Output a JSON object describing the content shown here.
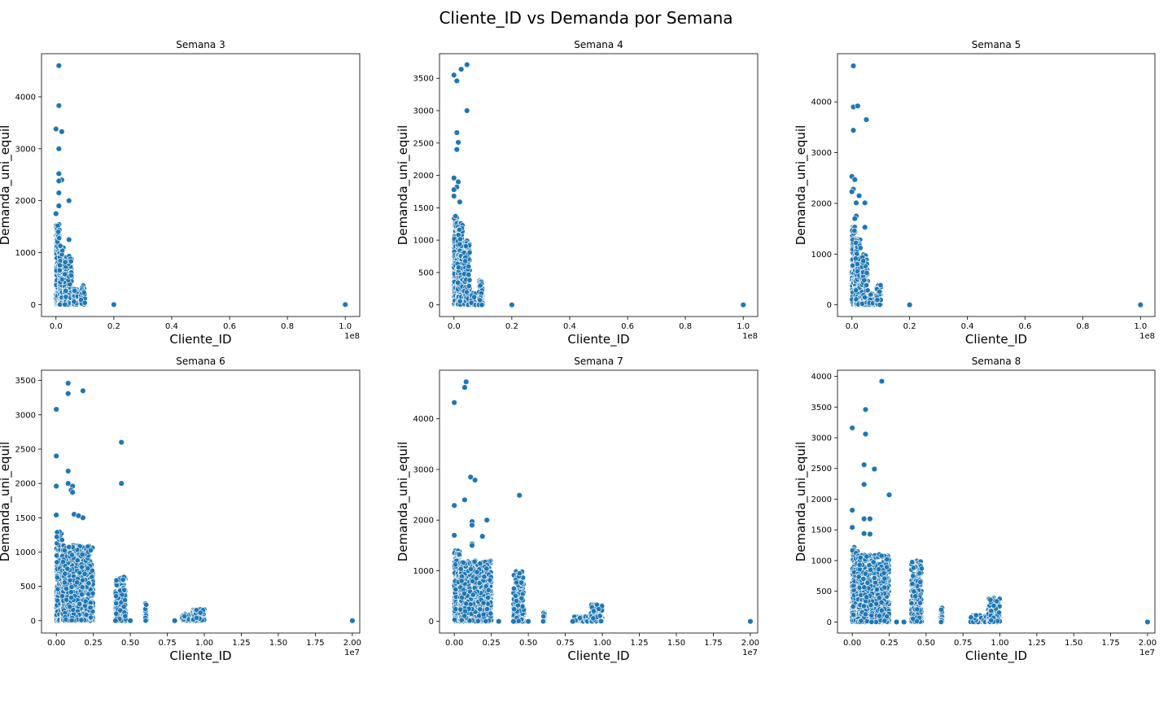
{
  "figure": {
    "title": "Cliente_ID vs Demanda por Semana",
    "marker_color": "#1f77b4",
    "marker_edge_color": "#ffffff"
  },
  "chart_data": [
    {
      "type": "scatter",
      "title": "Semana 3",
      "xlabel": "Cliente_ID",
      "ylabel": "Demanda_uni_equil",
      "x_offset_label": "1e8",
      "xlim": [
        -0.05,
        1.05
      ],
      "ylim": [
        -230,
        4830
      ],
      "xticks": [
        0.0,
        0.2,
        0.4,
        0.6,
        0.8,
        1.0
      ],
      "xticklabels": [
        "0.0",
        "0.2",
        "0.4",
        "0.6",
        "0.8",
        "1.0"
      ],
      "yticks": [
        0,
        1000,
        2000,
        3000,
        4000
      ],
      "yticklabels": [
        "0",
        "1000",
        "2000",
        "3000",
        "4000"
      ],
      "outliers": [
        [
          0.01,
          4600
        ],
        [
          0.01,
          3830
        ],
        [
          0.0,
          3380
        ],
        [
          0.02,
          3330
        ],
        [
          0.01,
          3000
        ],
        [
          0.01,
          2520
        ],
        [
          0.02,
          2400
        ],
        [
          0.01,
          2380
        ],
        [
          0.01,
          2150
        ],
        [
          0.045,
          2000
        ],
        [
          0.01,
          1900
        ],
        [
          0.0,
          1750
        ],
        [
          0.045,
          1250
        ],
        [
          0.2,
          0
        ],
        [
          1.0,
          0
        ]
      ],
      "clusters": [
        [
          0.0,
          0.012,
          1550,
          320
        ],
        [
          0.012,
          0.026,
          1200,
          160
        ],
        [
          0.03,
          0.055,
          1000,
          140
        ],
        [
          0.06,
          0.075,
          300,
          40
        ],
        [
          0.085,
          0.1,
          400,
          60
        ]
      ]
    },
    {
      "type": "scatter",
      "title": "Semana 4",
      "xlabel": "Cliente_ID",
      "ylabel": "Demanda_uni_equil",
      "x_offset_label": "1e8",
      "xlim": [
        -0.05,
        1.05
      ],
      "ylim": [
        -180,
        3880
      ],
      "xticks": [
        0.0,
        0.2,
        0.4,
        0.6,
        0.8,
        1.0
      ],
      "xticklabels": [
        "0.0",
        "0.2",
        "0.4",
        "0.6",
        "0.8",
        "1.0"
      ],
      "yticks": [
        0,
        500,
        1000,
        1500,
        2000,
        2500,
        3000,
        3500
      ],
      "yticklabels": [
        "0",
        "500",
        "1000",
        "1500",
        "2000",
        "2500",
        "3000",
        "3500"
      ],
      "outliers": [
        [
          0.045,
          3710
        ],
        [
          0.025,
          3640
        ],
        [
          0.0,
          3550
        ],
        [
          0.01,
          3460
        ],
        [
          0.045,
          3000
        ],
        [
          0.01,
          2660
        ],
        [
          0.015,
          2510
        ],
        [
          0.01,
          2400
        ],
        [
          0.0,
          1960
        ],
        [
          0.015,
          1900
        ],
        [
          0.01,
          1820
        ],
        [
          0.0,
          1780
        ],
        [
          0.0,
          1680
        ],
        [
          0.02,
          1590
        ],
        [
          0.2,
          0
        ],
        [
          1.0,
          0
        ]
      ],
      "clusters": [
        [
          0.0,
          0.012,
          1380,
          300
        ],
        [
          0.012,
          0.03,
          1260,
          170
        ],
        [
          0.035,
          0.055,
          1000,
          140
        ],
        [
          0.06,
          0.075,
          200,
          40
        ],
        [
          0.085,
          0.1,
          380,
          60
        ]
      ]
    },
    {
      "type": "scatter",
      "title": "Semana 5",
      "xlabel": "Cliente_ID",
      "ylabel": "Demanda_uni_equil",
      "x_offset_label": "1e8",
      "xlim": [
        -0.05,
        1.05
      ],
      "ylim": [
        -230,
        4950
      ],
      "xticks": [
        0.0,
        0.2,
        0.4,
        0.6,
        0.8,
        1.0
      ],
      "xticklabels": [
        "0.0",
        "0.2",
        "0.4",
        "0.6",
        "0.8",
        "1.0"
      ],
      "yticks": [
        0,
        1000,
        2000,
        3000,
        4000
      ],
      "yticklabels": [
        "0",
        "1000",
        "2000",
        "3000",
        "4000"
      ],
      "outliers": [
        [
          0.005,
          4710
        ],
        [
          0.005,
          3900
        ],
        [
          0.02,
          3920
        ],
        [
          0.05,
          3650
        ],
        [
          0.005,
          3440
        ],
        [
          0.0,
          2530
        ],
        [
          0.01,
          2470
        ],
        [
          0.005,
          2280
        ],
        [
          0.0,
          2230
        ],
        [
          0.025,
          2150
        ],
        [
          0.015,
          2010
        ],
        [
          0.045,
          2010
        ],
        [
          0.015,
          1750
        ],
        [
          0.01,
          1700
        ],
        [
          0.045,
          1530
        ],
        [
          0.2,
          0
        ],
        [
          1.0,
          0
        ]
      ],
      "clusters": [
        [
          0.0,
          0.012,
          1550,
          300
        ],
        [
          0.012,
          0.03,
          1300,
          170
        ],
        [
          0.035,
          0.055,
          1000,
          140
        ],
        [
          0.06,
          0.075,
          220,
          40
        ],
        [
          0.085,
          0.1,
          400,
          60
        ]
      ]
    },
    {
      "type": "scatter",
      "title": "Semana 6",
      "xlabel": "Cliente_ID",
      "ylabel": "Demanda_uni_equil",
      "x_offset_label": "1e7",
      "xlim": [
        -0.1,
        2.05
      ],
      "ylim": [
        -180,
        3650
      ],
      "xticks": [
        0.0,
        0.25,
        0.5,
        0.75,
        1.0,
        1.25,
        1.5,
        1.75,
        2.0
      ],
      "xticklabels": [
        "0.00",
        "0.25",
        "0.50",
        "0.75",
        "1.00",
        "1.25",
        "1.50",
        "1.75",
        "2.00"
      ],
      "yticks": [
        0,
        500,
        1000,
        1500,
        2000,
        2500,
        3000,
        3500
      ],
      "yticklabels": [
        "0",
        "500",
        "1000",
        "1500",
        "2000",
        "2500",
        "3000",
        "3500"
      ],
      "outliers": [
        [
          0.08,
          3460
        ],
        [
          0.18,
          3350
        ],
        [
          0.08,
          3310
        ],
        [
          0.0,
          3080
        ],
        [
          0.44,
          2600
        ],
        [
          0.0,
          2400
        ],
        [
          0.08,
          2180
        ],
        [
          0.44,
          2000
        ],
        [
          0.08,
          2000
        ],
        [
          0.11,
          1960
        ],
        [
          0.1,
          1900
        ],
        [
          0.11,
          1870
        ],
        [
          0.0,
          1960
        ],
        [
          0.12,
          1550
        ],
        [
          0.18,
          1500
        ],
        [
          0.0,
          1540
        ],
        [
          0.15,
          1530
        ],
        [
          0.4,
          0
        ],
        [
          0.5,
          0
        ],
        [
          0.8,
          0
        ],
        [
          2.0,
          0
        ]
      ],
      "clusters": [
        [
          0.0,
          0.04,
          1300,
          260
        ],
        [
          0.04,
          0.25,
          1100,
          900
        ],
        [
          0.4,
          0.47,
          650,
          260
        ],
        [
          0.6,
          0.61,
          260,
          40
        ],
        [
          0.85,
          0.92,
          100,
          100
        ],
        [
          0.92,
          1.0,
          170,
          130
        ]
      ]
    },
    {
      "type": "scatter",
      "title": "Semana 7",
      "xlabel": "Cliente_ID",
      "ylabel": "Demanda_uni_equil",
      "x_offset_label": "1e7",
      "xlim": [
        -0.1,
        2.05
      ],
      "ylim": [
        -230,
        4960
      ],
      "xticks": [
        0.0,
        0.25,
        0.5,
        0.75,
        1.0,
        1.25,
        1.5,
        1.75,
        2.0
      ],
      "xticklabels": [
        "0.00",
        "0.25",
        "0.50",
        "0.75",
        "1.00",
        "1.25",
        "1.50",
        "1.75",
        "2.00"
      ],
      "yticks": [
        0,
        1000,
        2000,
        3000,
        4000
      ],
      "yticklabels": [
        "0",
        "1000",
        "2000",
        "3000",
        "4000"
      ],
      "outliers": [
        [
          0.08,
          4730
        ],
        [
          0.07,
          4620
        ],
        [
          0.0,
          4320
        ],
        [
          0.11,
          2850
        ],
        [
          0.14,
          2790
        ],
        [
          0.44,
          2490
        ],
        [
          0.07,
          2400
        ],
        [
          0.0,
          2290
        ],
        [
          0.22,
          2000
        ],
        [
          0.12,
          1970
        ],
        [
          0.12,
          1900
        ],
        [
          0.0,
          1700
        ],
        [
          0.19,
          1680
        ],
        [
          0.12,
          1530
        ],
        [
          0.12,
          1500
        ],
        [
          0.3,
          0
        ],
        [
          0.4,
          0
        ],
        [
          0.5,
          0
        ],
        [
          0.8,
          0
        ],
        [
          2.0,
          0
        ]
      ],
      "clusters": [
        [
          0.0,
          0.04,
          1400,
          260
        ],
        [
          0.04,
          0.25,
          1200,
          900
        ],
        [
          0.4,
          0.47,
          1000,
          260
        ],
        [
          0.6,
          0.61,
          200,
          40
        ],
        [
          0.8,
          0.92,
          100,
          100
        ],
        [
          0.92,
          1.0,
          350,
          130
        ]
      ]
    },
    {
      "type": "scatter",
      "title": "Semana 8",
      "xlabel": "Cliente_ID",
      "ylabel": "Demanda_uni_equil",
      "x_offset_label": "1e7",
      "xlim": [
        -0.1,
        2.05
      ],
      "ylim": [
        -180,
        4100
      ],
      "xticks": [
        0.0,
        0.25,
        0.5,
        0.75,
        1.0,
        1.25,
        1.5,
        1.75,
        2.0
      ],
      "xticklabels": [
        "0.00",
        "0.25",
        "0.50",
        "0.75",
        "1.00",
        "1.25",
        "1.50",
        "1.75",
        "2.00"
      ],
      "yticks": [
        0,
        500,
        1000,
        1500,
        2000,
        2500,
        3000,
        3500,
        4000
      ],
      "yticklabels": [
        "0",
        "500",
        "1000",
        "1500",
        "2000",
        "2500",
        "3000",
        "3500",
        "4000"
      ],
      "outliers": [
        [
          0.2,
          3920
        ],
        [
          0.09,
          3460
        ],
        [
          0.0,
          3160
        ],
        [
          0.09,
          3060
        ],
        [
          0.08,
          2560
        ],
        [
          0.15,
          2490
        ],
        [
          0.08,
          2240
        ],
        [
          0.25,
          2070
        ],
        [
          0.0,
          1820
        ],
        [
          0.08,
          1680
        ],
        [
          0.12,
          1680
        ],
        [
          0.0,
          1540
        ],
        [
          0.12,
          1430
        ],
        [
          0.08,
          1440
        ],
        [
          0.3,
          0
        ],
        [
          0.35,
          0
        ],
        [
          2.0,
          0
        ]
      ],
      "clusters": [
        [
          0.0,
          0.04,
          1250,
          260
        ],
        [
          0.04,
          0.25,
          1100,
          900
        ],
        [
          0.4,
          0.47,
          1000,
          260
        ],
        [
          0.6,
          0.61,
          240,
          40
        ],
        [
          0.8,
          0.92,
          110,
          100
        ],
        [
          0.92,
          1.0,
          400,
          130
        ]
      ]
    }
  ]
}
